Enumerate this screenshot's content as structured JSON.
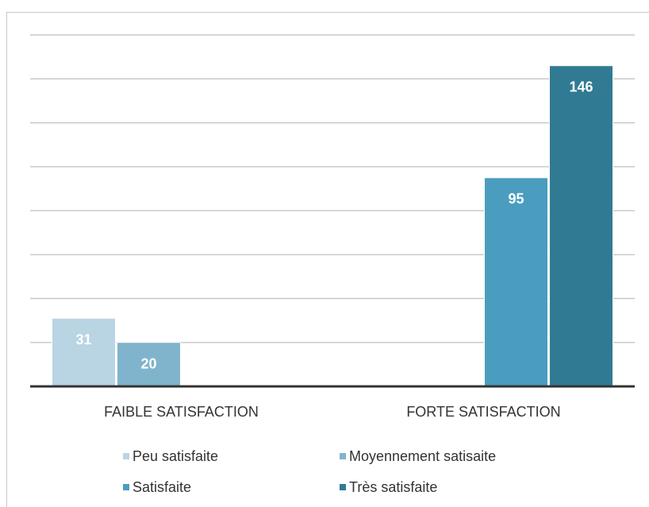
{
  "chart_data": {
    "type": "bar",
    "categories": [
      "FAIBLE SATISFACTION",
      "FORTE SATISFACTION"
    ],
    "series": [
      {
        "name": "Peu satisfaite",
        "color": "#b9d4e2",
        "values": [
          31,
          null
        ]
      },
      {
        "name": "Moyennement satisaite",
        "color": "#80b4cd",
        "values": [
          20,
          null
        ]
      },
      {
        "name": "Satisfaite",
        "color": "#4a9dbf",
        "values": [
          null,
          95
        ]
      },
      {
        "name": "Très satisfaite",
        "color": "#317a93",
        "values": [
          null,
          146
        ]
      }
    ],
    "ylim": [
      0,
      160
    ],
    "yticks": [
      0,
      20,
      40,
      60,
      80,
      100,
      120,
      140,
      160
    ],
    "grid": true
  }
}
